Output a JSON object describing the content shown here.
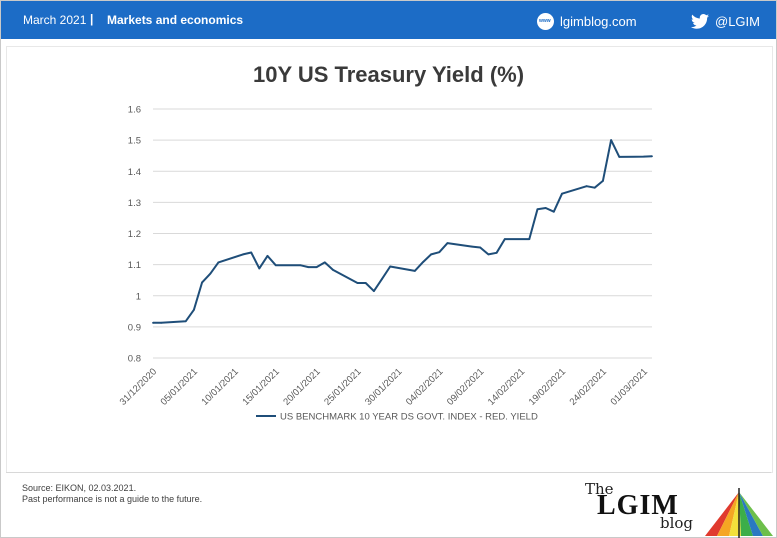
{
  "header": {
    "date": "March 2021",
    "separator": "|",
    "section": "Markets and economics",
    "site": "lgimblog.com",
    "twitter": "@LGIM"
  },
  "footer": {
    "source": "Source: EIKON, 02.03.2021.",
    "disclaimer": "Past performance is not a guide to the future."
  },
  "logo": {
    "the": "The",
    "lgim": "LGIM",
    "blog": "blog"
  },
  "colors": {
    "header_bg": "#1c6cc6",
    "series_line": "#1f4e79",
    "gridline": "#d9d9d9"
  },
  "chart_data": {
    "type": "line",
    "title": "10Y US Treasury Yield (%)",
    "xlabel": "",
    "ylabel": "",
    "ylim": [
      0.8,
      1.6
    ],
    "yticks": [
      0.8,
      0.9,
      1,
      1.1,
      1.2,
      1.3,
      1.4,
      1.5,
      1.6
    ],
    "xtick_labels": [
      "31/12/2020",
      "05/01/2021",
      "10/01/2021",
      "15/01/2021",
      "20/01/2021",
      "25/01/2021",
      "30/01/2021",
      "04/02/2021",
      "09/02/2021",
      "14/02/2021",
      "19/02/2021",
      "24/02/2021",
      "01/03/2021"
    ],
    "grid": true,
    "legend": "bottom",
    "series": [
      {
        "name": "US BENCHMARK 10 YEAR DS GOVT. INDEX - RED. YIELD",
        "x": [
          "31/12/2020",
          "01/01/2021",
          "04/01/2021",
          "05/01/2021",
          "06/01/2021",
          "07/01/2021",
          "08/01/2021",
          "11/01/2021",
          "12/01/2021",
          "13/01/2021",
          "14/01/2021",
          "15/01/2021",
          "18/01/2021",
          "19/01/2021",
          "20/01/2021",
          "21/01/2021",
          "22/01/2021",
          "25/01/2021",
          "26/01/2021",
          "27/01/2021",
          "28/01/2021",
          "29/01/2021",
          "01/02/2021",
          "02/02/2021",
          "03/02/2021",
          "04/02/2021",
          "05/02/2021",
          "08/02/2021",
          "09/02/2021",
          "10/02/2021",
          "11/02/2021",
          "12/02/2021",
          "15/02/2021",
          "16/02/2021",
          "17/02/2021",
          "18/02/2021",
          "19/02/2021",
          "22/02/2021",
          "23/02/2021",
          "24/02/2021",
          "25/02/2021",
          "26/02/2021",
          "01/03/2021",
          "02/03/2021"
        ],
        "values": [
          0.913,
          0.913,
          0.918,
          0.955,
          1.043,
          1.071,
          1.107,
          1.133,
          1.139,
          1.088,
          1.128,
          1.098,
          1.098,
          1.092,
          1.092,
          1.107,
          1.083,
          1.041,
          1.041,
          1.015,
          1.054,
          1.094,
          1.08,
          1.108,
          1.133,
          1.14,
          1.169,
          1.158,
          1.155,
          1.133,
          1.138,
          1.182,
          1.182,
          1.278,
          1.282,
          1.27,
          1.328,
          1.352,
          1.347,
          1.369,
          1.5,
          1.446,
          1.447,
          1.448
        ]
      }
    ]
  }
}
